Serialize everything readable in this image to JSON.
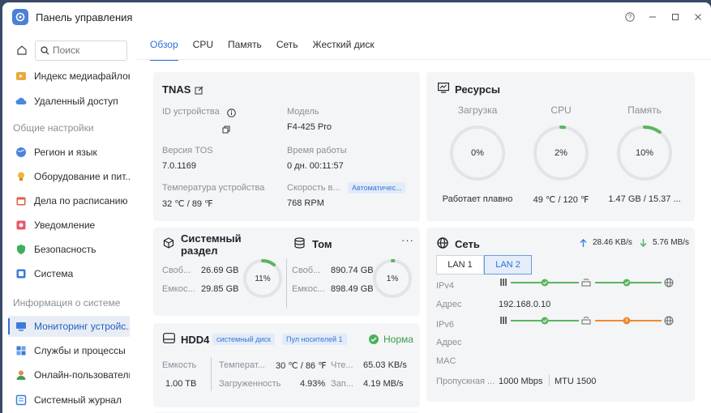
{
  "window": {
    "title": "Панель управления",
    "help_icon": "help-icon",
    "min_icon": "minimize-icon",
    "max_icon": "maximize-icon",
    "close_icon": "close-icon"
  },
  "sidebar": {
    "search_placeholder": "Поиск",
    "items_top": [
      {
        "label": "Индекс медиафайлов",
        "icon": "media-index-icon"
      },
      {
        "label": "Удаленный доступ",
        "icon": "cloud-icon"
      }
    ],
    "section_general": "Общие настройки",
    "items_general": [
      {
        "label": "Регион и язык",
        "icon": "globe-icon"
      },
      {
        "label": "Оборудование и пит...",
        "icon": "bulb-icon"
      },
      {
        "label": "Дела по расписанию",
        "icon": "calendar-icon"
      },
      {
        "label": "Уведомление",
        "icon": "notification-icon"
      },
      {
        "label": "Безопасность",
        "icon": "shield-icon"
      },
      {
        "label": "Система",
        "icon": "system-icon"
      }
    ],
    "section_info": "Информация о системе",
    "items_info": [
      {
        "label": "Мониторинг устройс...",
        "icon": "monitor-icon",
        "active": true
      },
      {
        "label": "Службы и процессы",
        "icon": "services-icon"
      },
      {
        "label": "Онлайн-пользователи",
        "icon": "users-icon"
      },
      {
        "label": "Системный журнал",
        "icon": "log-icon"
      }
    ]
  },
  "tabs": [
    "Обзор",
    "CPU",
    "Память",
    "Сеть",
    "Жесткий диск"
  ],
  "device": {
    "name": "TNAS",
    "id_label": "ID устройства",
    "model_label": "Модель",
    "model": "F4-425 Pro",
    "tos_label": "Версия TOS",
    "tos": "7.0.1169",
    "uptime_label": "Время работы",
    "uptime": "0 дн. 00:11:57",
    "temp_label": "Температура устройства",
    "temp": "32 ℃ / 89 ℉",
    "fan_label": "Скорость в...",
    "fan_badge": "Автоматичес...",
    "fan": "768 RPM"
  },
  "resources": {
    "title": "Ресурсы",
    "load_label": "Загрузка",
    "load": 0,
    "load_text": "0%",
    "load_status": "Работает плавно",
    "cpu_label": "CPU",
    "cpu": 2,
    "cpu_text": "2%",
    "cpu_temp": "49 ℃ / 120 ℉",
    "mem_label": "Память",
    "mem": 10,
    "mem_text": "10%",
    "mem_used": "1.47 GB / 15.37 ..."
  },
  "system_partition": {
    "title_line1": "Системный",
    "title_line2": "раздел",
    "free_label": "Своб...",
    "free": "26.69 GB",
    "cap_label": "Емкос...",
    "cap": "29.85 GB",
    "pct": 11,
    "pct_text": "11%"
  },
  "volume": {
    "title": "Том",
    "more_icon": "more-icon",
    "free_label": "Своб...",
    "free": "890.74 GB",
    "cap_label": "Емкос...",
    "cap": "898.49 GB",
    "pct": 1,
    "pct_text": "1%"
  },
  "network": {
    "title": "Сеть",
    "upload": "28.46 KB/s",
    "download": "5.76 MB/s",
    "lan1": "LAN 1",
    "lan2": "LAN 2",
    "ipv4_label": "IPv4",
    "addr_label": "Адрес",
    "addr": "192.168.0.10",
    "ipv6_label": "IPv6",
    "addr6_label": "Адрес",
    "mac_label": "MAC",
    "bw_label": "Пропускная ...",
    "bw": "1000 Mbps",
    "mtu": "MTU 1500",
    "colors": {
      "ok": "#5ab55e",
      "warn": "#ee8a2e"
    }
  },
  "disk": {
    "title": "HDD4",
    "badge1": "системный диск",
    "badge2": "Пул носителей 1",
    "status": "Норма",
    "cap_label": "Емкость",
    "cap": "1.00 TB",
    "temp_label": "Температ...",
    "temp": "30 ℃ / 86 ℉",
    "load_label": "Загруженность",
    "load": "4.93%",
    "read_label": "Чте...",
    "read": "65.03 KB/s",
    "write_label": "Зап...",
    "write": "4.19 MB/s"
  },
  "colors": {
    "accent": "#2f6fd6",
    "ring_bg": "#e2e4e8",
    "ring_fg": "#5ab55e"
  }
}
